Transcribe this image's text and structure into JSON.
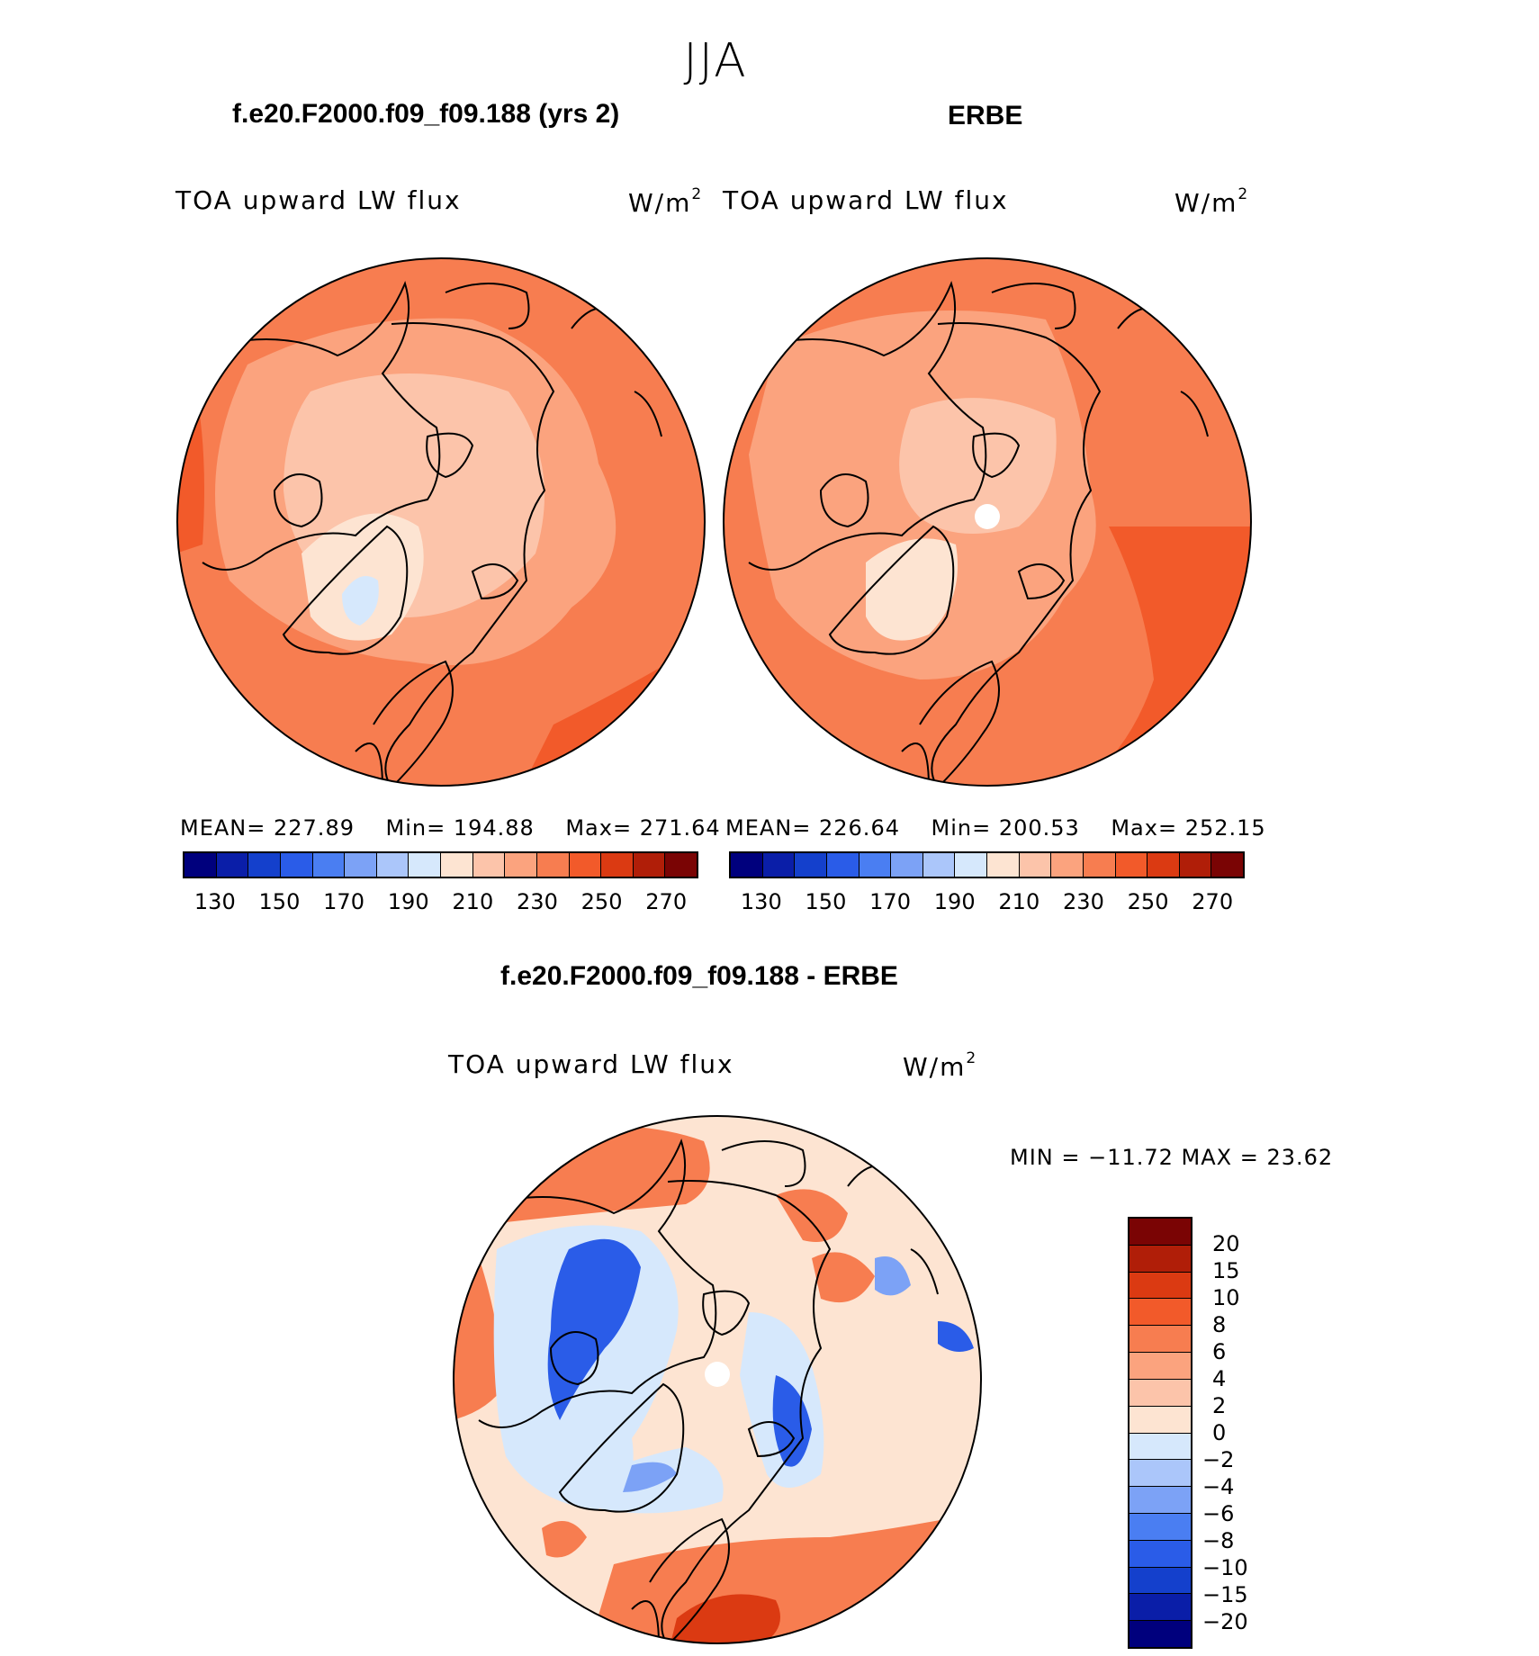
{
  "figure_title": "JJA",
  "panels": {
    "model": {
      "title": "f.e20.F2000.f09_f09.188 (yrs 2)",
      "variable": "TOA upward LW flux",
      "units_base": "W/m",
      "units_exp": "2",
      "stats": {
        "mean_label": "MEAN=",
        "mean": "227.89",
        "min_label": "Min=",
        "min": "194.88",
        "max_label": "Max=",
        "max": "271.64"
      }
    },
    "obs": {
      "title": "ERBE",
      "variable": "TOA upward LW flux",
      "units_base": "W/m",
      "units_exp": "2",
      "stats": {
        "mean_label": "MEAN=",
        "mean": "226.64",
        "min_label": "Min=",
        "min": "200.53",
        "max_label": "Max=",
        "max": "252.15"
      }
    },
    "diff": {
      "title": "f.e20.F2000.f09_f09.188 - ERBE",
      "variable": "TOA upward LW flux",
      "units_base": "W/m",
      "units_exp": "2",
      "minmax": "MIN = −11.72 MAX =  23.62"
    }
  },
  "abs_colorbar": {
    "colors": [
      "#00007d",
      "#0a1ea8",
      "#1440cc",
      "#2a5ce8",
      "#4a7ef2",
      "#7ca2f6",
      "#abc6fa",
      "#d6e8fc",
      "#fde4d2",
      "#fcc4aa",
      "#fba37e",
      "#f77d50",
      "#f25a2a",
      "#db3a12",
      "#b01e08",
      "#7a0404"
    ],
    "tick_labels": [
      "130",
      "150",
      "170",
      "190",
      "210",
      "230",
      "250",
      "270"
    ]
  },
  "diff_colorbar": {
    "colors": [
      "#7a0404",
      "#b01e08",
      "#db3a12",
      "#f25a2a",
      "#f77d50",
      "#fba37e",
      "#fcc4aa",
      "#fde4d2",
      "#d6e8fc",
      "#abc6fa",
      "#7ca2f6",
      "#4a7ef2",
      "#2a5ce8",
      "#1440cc",
      "#0a1ea8",
      "#00007d"
    ],
    "tick_labels": [
      "20",
      "15",
      "10",
      "8",
      "6",
      "4",
      "2",
      "0",
      "−2",
      "−4",
      "−6",
      "−8",
      "−10",
      "−15",
      "−20"
    ]
  },
  "map_colors": {
    "model_base": "#f77d50",
    "model_light": "#fba37e",
    "model_lighter": "#fcc4aa",
    "model_pale": "#fde4d2",
    "model_blue": "#d6e8fc",
    "model_dark": "#f25a2a",
    "model_darker": "#db3a12",
    "model_darkest": "#b01e08",
    "diff_neutral_pos": "#fde4d2",
    "diff_neutral_neg": "#d6e8fc",
    "diff_blue_mid": "#7ca2f6",
    "diff_blue_dark": "#2a5ce8",
    "diff_red_mid": "#f77d50",
    "diff_red_dark": "#db3a12"
  }
}
